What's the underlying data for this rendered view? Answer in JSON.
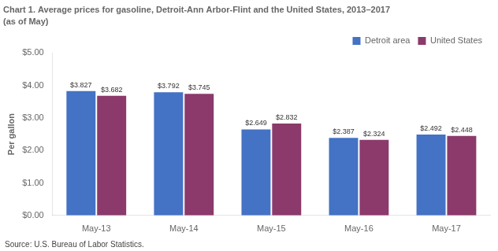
{
  "chart_data": {
    "type": "bar",
    "title": "Chart 1. Average prices for gasoline, Detroit-Ann Arbor-Flint and the United States, 2013–2017",
    "subtitle": "(as of May)",
    "ylabel": "Per gallon",
    "source": "Source: U.S. Bureau of Labor Statistics.",
    "categories": [
      "May-13",
      "May-14",
      "May-15",
      "May-16",
      "May-17"
    ],
    "series": [
      {
        "name": "Detroit area",
        "color": "#4472C4",
        "values": [
          3.827,
          3.792,
          2.649,
          2.387,
          2.492
        ],
        "value_labels": [
          "$3.827",
          "$3.792",
          "$2.649",
          "$2.387",
          "$2.492"
        ]
      },
      {
        "name": "United States",
        "color": "#8B3A6B",
        "values": [
          3.682,
          3.745,
          2.832,
          2.324,
          2.448
        ],
        "value_labels": [
          "$3.682",
          "$3.745",
          "$2.832",
          "$2.324",
          "$2.448"
        ]
      }
    ],
    "ylim": [
      0,
      5.0
    ],
    "yticks": [
      {
        "value": 0.0,
        "label": "$0.00"
      },
      {
        "value": 1.0,
        "label": "$1.00"
      },
      {
        "value": 2.0,
        "label": "$2.00"
      },
      {
        "value": 3.0,
        "label": "$3.00"
      },
      {
        "value": 4.0,
        "label": "$4.00"
      },
      {
        "value": 5.0,
        "label": "$5.00"
      }
    ],
    "grid": false,
    "legend": "upper right",
    "data_labels": true
  }
}
